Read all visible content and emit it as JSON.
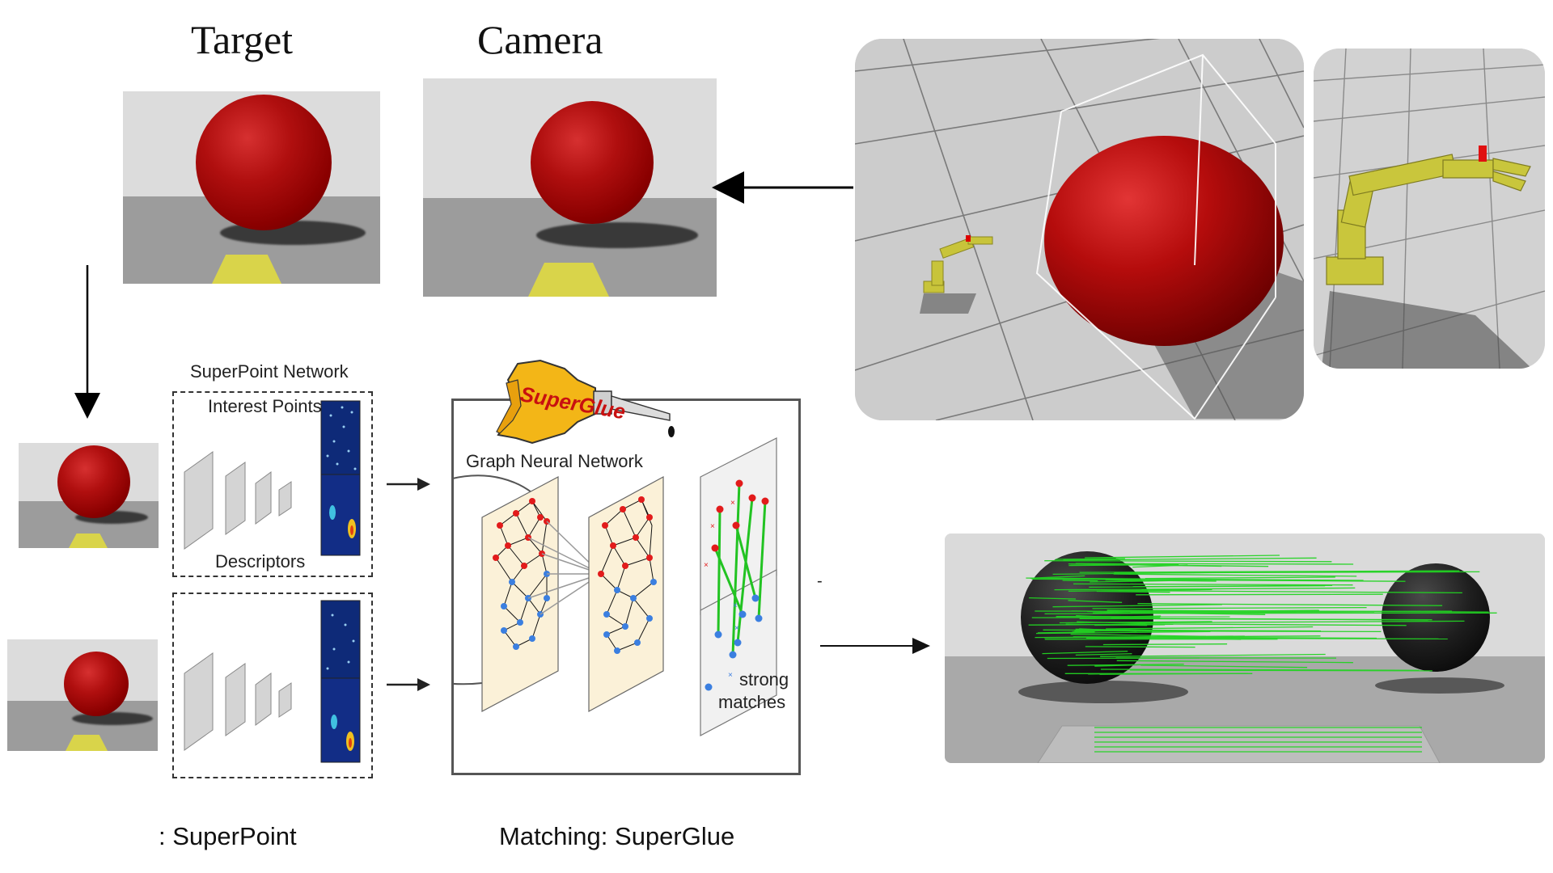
{
  "titles": {
    "target": "Target",
    "camera": "Camera"
  },
  "superpoint": {
    "network_label": "SuperPoint Network",
    "interest_points_label": "Interest Points",
    "descriptors_label": "Descriptors"
  },
  "superglue": {
    "logo_text": "SuperGlue",
    "gnn_label": "Graph Neural Network",
    "strong_matches_line1": "strong",
    "strong_matches_line2": "matches"
  },
  "captions": {
    "superpoint": ": SuperPoint",
    "matching": "Matching: SuperGlue"
  },
  "misc": {
    "dash": "-"
  },
  "colors": {
    "ball_red": "#b00f0f",
    "pad_yellow": "#d9d44a",
    "keypoint_red": "#e21b1b",
    "keypoint_blue": "#3b7fe0",
    "match_green": "#22c322",
    "panel_cream": "#fbf1d8"
  }
}
